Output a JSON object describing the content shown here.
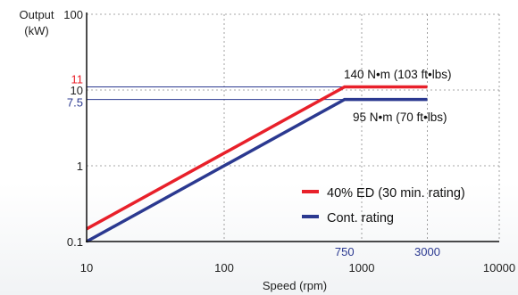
{
  "chart_data": {
    "type": "line",
    "xscale": "log",
    "yscale": "log",
    "xlim": [
      10,
      10000
    ],
    "ylim": [
      0.1,
      100
    ],
    "xlabel": "Speed (rpm)",
    "ylabel_line1": "Output",
    "ylabel_line2": "(kW)",
    "x_ticks": [
      {
        "value": 10,
        "label": "10"
      },
      {
        "value": 100,
        "label": "100"
      },
      {
        "value": 1000,
        "label": "1000"
      },
      {
        "value": 10000,
        "label": "10000"
      }
    ],
    "x_ticks_highlight": [
      {
        "value": 750,
        "label": "750"
      },
      {
        "value": 3000,
        "label": "3000"
      }
    ],
    "y_ticks": [
      {
        "value": 0.1,
        "label": "0.1"
      },
      {
        "value": 1,
        "label": "1"
      },
      {
        "value": 10,
        "label": "10"
      },
      {
        "value": 100,
        "label": "100"
      }
    ],
    "y_ticks_highlight": [
      {
        "value": 11,
        "label": "11",
        "color": "#e8202a"
      },
      {
        "value": 7.5,
        "label": "7.5",
        "color": "#2b3990"
      }
    ],
    "series": [
      {
        "name": "40% ED (30 min. rating)",
        "color": "#e8202a",
        "points": [
          [
            10,
            0.147
          ],
          [
            750,
            11
          ],
          [
            3000,
            11
          ]
        ]
      },
      {
        "name": "Cont. rating",
        "color": "#2b3990",
        "points": [
          [
            10,
            0.1
          ],
          [
            750,
            7.5
          ],
          [
            3000,
            7.5
          ]
        ]
      }
    ],
    "annotations": [
      {
        "text": "140 N•m (103 ft•lbs)",
        "series": 0
      },
      {
        "text": "95 N•m (70 ft•lbs)",
        "series": 1
      }
    ],
    "reference_hlines": [
      11,
      7.5
    ],
    "grid": "dashed at decades and 3000 rpm",
    "legend": "bottom-right",
    "tick_color": "#2b3990"
  }
}
